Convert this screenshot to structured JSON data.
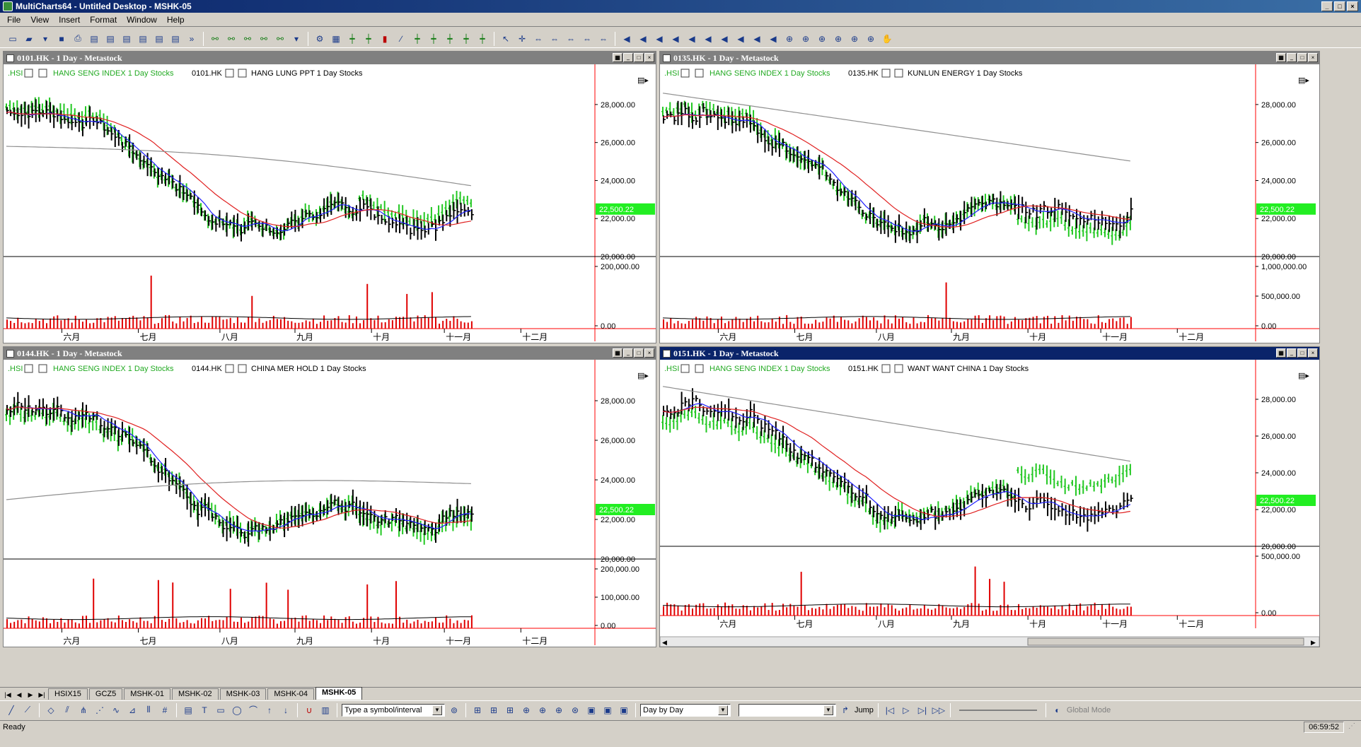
{
  "app": {
    "title": "MultiCharts64 - Untitled Desktop - MSHK-05"
  },
  "menu": [
    "File",
    "View",
    "Insert",
    "Format",
    "Window",
    "Help"
  ],
  "toolbar_icons": [
    "new-icon",
    "open-icon",
    "dropdown-icon",
    "save-icon",
    "print-icon",
    "window-icon",
    "window-icon",
    "window-icon",
    "window-icon",
    "window-icon",
    "window-icon",
    "more-icon",
    "indicator-icon",
    "indicator-icon",
    "indicator-icon",
    "indicator-icon",
    "indicator-icon",
    "dropdown-icon",
    "strategy-icon",
    "chart-type-icon",
    "bar-icon",
    "bar-icon",
    "candle-icon",
    "line-icon",
    "bar-icon",
    "bar-icon",
    "bar-icon",
    "bar-icon",
    "bar-icon",
    "pointer-icon",
    "crosshair-icon",
    "drag-icon",
    "drag-icon",
    "drag-icon",
    "drag-icon",
    "drag-icon",
    "step-icon",
    "step-icon",
    "step-icon",
    "step-icon",
    "step-icon",
    "step-icon",
    "step-icon",
    "step-icon",
    "step-icon",
    "step-icon",
    "zoom-icon",
    "zoom-icon",
    "zoom-icon",
    "zoom-icon",
    "zoom-icon",
    "zoom-icon",
    "hand-icon"
  ],
  "month_labels": [
    "六月",
    "七月",
    "八月",
    "九月",
    "十月",
    "十一月",
    "十二月"
  ],
  "panes": [
    {
      "id": "p1",
      "title": "0101.HK - 1 Day - Metastock",
      "hsi_label": ".HSI",
      "hsi_desc": "HANG SENG INDEX  1 Day  Stocks",
      "sym_label": "0101.HK",
      "sym_desc": "HANG LUNG PPT  1 Day  Stocks",
      "price_ticks": [
        "28,000.00",
        "26,000.00",
        "24,000.00",
        "22,000.00",
        "20,000.00"
      ],
      "last_price": "22,500.22",
      "vol_ticks": [
        "200,000.00",
        "0.00"
      ]
    },
    {
      "id": "p2",
      "title": "0135.HK - 1 Day - Metastock",
      "hsi_label": ".HSI",
      "hsi_desc": "HANG SENG INDEX  1 Day  Stocks",
      "sym_label": "0135.HK",
      "sym_desc": "KUNLUN ENERGY  1 Day  Stocks",
      "price_ticks": [
        "28,000.00",
        "26,000.00",
        "24,000.00",
        "22,000.00",
        "20,000.00"
      ],
      "last_price": "22,500.22",
      "vol_ticks": [
        "1,000,000.00",
        "500,000.00",
        "0.00"
      ]
    },
    {
      "id": "p3",
      "title": "0144.HK - 1 Day - Metastock",
      "hsi_label": ".HSI",
      "hsi_desc": "HANG SENG INDEX  1 Day  Stocks",
      "sym_label": "0144.HK",
      "sym_desc": "CHINA MER HOLD  1 Day  Stocks",
      "price_ticks": [
        "28,000.00",
        "26,000.00",
        "24,000.00",
        "22,000.00",
        "20,000.00"
      ],
      "last_price": "22,500.22",
      "vol_ticks": [
        "200,000.00",
        "100,000.00",
        "0.00"
      ]
    },
    {
      "id": "p4",
      "title": "0151.HK - 1 Day - Metastock",
      "hsi_label": ".HSI",
      "hsi_desc": "HANG SENG INDEX  1 Day  Stocks",
      "sym_label": "0151.HK",
      "sym_desc": "WANT WANT CHINA  1 Day  Stocks",
      "price_ticks": [
        "28,000.00",
        "26,000.00",
        "24,000.00",
        "22,000.00",
        "20,000.00"
      ],
      "last_price": "22,500.22",
      "vol_ticks": [
        "500,000.00",
        "0.00"
      ]
    }
  ],
  "tabs": [
    "HSIX15",
    "GCZ5",
    "MSHK-01",
    "MSHK-02",
    "MSHK-03",
    "MSHK-04",
    "MSHK-05"
  ],
  "active_tab": "MSHK-05",
  "toolbar2": {
    "symbol_placeholder": "Type a symbol/interval",
    "replay_mode": "Day by Day",
    "jump_label": "Jump",
    "global_mode_label": "Global Mode"
  },
  "status": {
    "text": "Ready",
    "clock": "06:59:52"
  },
  "colors": {
    "hsi_bars": "#22c822",
    "stock_bars": "#000000",
    "ma_fast": "#2020ff",
    "ma_mid": "#e02020",
    "ma_slow": "#909090",
    "volume": "#e00000",
    "last_price_bg": "#22ee22",
    "active_title": "#0a246a",
    "inactive_title": "#808080"
  }
}
